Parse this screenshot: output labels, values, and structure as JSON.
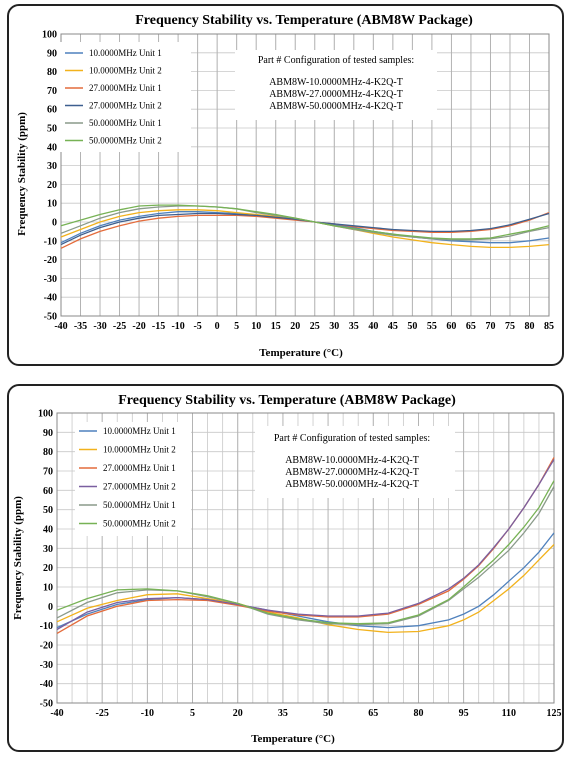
{
  "chart_data": [
    {
      "type": "line",
      "title": "Frequency Stability vs. Temperature (ABM8W Package)",
      "xlabel": "Temperature (°C)",
      "ylabel": "Frequency Stability (ppm)",
      "xlim": [
        -40,
        85
      ],
      "ylim": [
        -50,
        100
      ],
      "xticks": [
        -40,
        -35,
        -30,
        -25,
        -20,
        -15,
        -10,
        -5,
        0,
        5,
        10,
        15,
        20,
        25,
        30,
        35,
        40,
        45,
        50,
        55,
        60,
        65,
        70,
        75,
        80,
        85
      ],
      "yticks": [
        -50,
        -40,
        -30,
        -20,
        -10,
        0,
        10,
        20,
        30,
        40,
        50,
        60,
        70,
        80,
        90,
        100
      ],
      "grid": true,
      "legend": "top-left",
      "note_lines": [
        "Part # Configuration of tested samples:",
        "ABM8W-10.0000MHz-4-K2Q-T",
        "ABM8W-27.0000MHz-4-K2Q-T",
        "ABM8W-50.0000MHz-4-K2Q-T"
      ],
      "x": [
        -40,
        -35,
        -30,
        -25,
        -20,
        -15,
        -10,
        -5,
        0,
        5,
        10,
        15,
        20,
        25,
        30,
        35,
        40,
        45,
        50,
        55,
        60,
        65,
        70,
        75,
        80,
        85
      ],
      "series": [
        {
          "name": "10.0000MHz Unit 1",
          "color": "#4f81bd",
          "values": [
            -11,
            -6,
            -2,
            1,
            3,
            4.5,
            5.5,
            5.5,
            5,
            4.5,
            3.5,
            2.5,
            1.5,
            0,
            -1.5,
            -3,
            -5,
            -6.5,
            -8,
            -9,
            -10,
            -10.5,
            -11,
            -11,
            -10,
            -8.5
          ]
        },
        {
          "name": "10.0000MHz Unit 2",
          "color": "#f2b21c",
          "values": [
            -8,
            -4,
            0,
            3,
            5,
            6,
            6.5,
            6.5,
            6,
            5,
            4,
            3,
            1.5,
            0,
            -2,
            -4,
            -6,
            -8,
            -9.5,
            -11,
            -12,
            -13,
            -13.5,
            -13.5,
            -13,
            -12
          ]
        },
        {
          "name": "27.0000MHz Unit 1",
          "color": "#e46c3c",
          "values": [
            -14,
            -9,
            -5,
            -2,
            0.5,
            2,
            3,
            3.5,
            3.5,
            3.5,
            3,
            2,
            1,
            0,
            -1,
            -2.5,
            -3.5,
            -4.5,
            -5,
            -5.5,
            -5.5,
            -5,
            -4,
            -2,
            1,
            5
          ]
        },
        {
          "name": "27.0000MHz Unit 2",
          "color": "#3d5f8f",
          "values": [
            -12,
            -7,
            -3,
            0,
            2,
            3.5,
            4,
            4.5,
            4.5,
            4,
            3.5,
            2.5,
            1.5,
            0,
            -1,
            -2,
            -3,
            -4,
            -4.5,
            -5,
            -5,
            -4.5,
            -3.5,
            -1.5,
            1.5,
            4.5
          ]
        },
        {
          "name": "50.0000MHz Unit 1",
          "color": "#8a9a8a",
          "values": [
            -6,
            -2,
            2,
            5,
            7,
            8,
            8.5,
            8.5,
            8,
            7,
            5,
            3.5,
            2,
            0,
            -2,
            -4,
            -5.5,
            -7,
            -8,
            -9,
            -9.5,
            -9.5,
            -9,
            -7.5,
            -5,
            -3
          ]
        },
        {
          "name": "50.0000MHz Unit 2",
          "color": "#77b255",
          "values": [
            -2,
            1,
            4,
            6.5,
            8.5,
            9,
            9,
            8.5,
            8,
            7,
            5.5,
            4,
            2,
            0,
            -2,
            -3.5,
            -5,
            -6.5,
            -7.5,
            -8.5,
            -9,
            -9,
            -8.5,
            -6.5,
            -4.5,
            -2
          ]
        }
      ]
    },
    {
      "type": "line",
      "title": "Frequency Stability vs. Temperature (ABM8W Package)",
      "xlabel": "Temperature (°C)",
      "ylabel": "Frequency Stability (ppm)",
      "xlim": [
        -40,
        125
      ],
      "ylim": [
        -50,
        100
      ],
      "xticks": [
        -40,
        -25,
        -10,
        5,
        20,
        35,
        50,
        65,
        80,
        95,
        110,
        125
      ],
      "yticks": [
        -50,
        -40,
        -30,
        -20,
        -10,
        0,
        10,
        20,
        30,
        40,
        50,
        60,
        70,
        80,
        90,
        100
      ],
      "grid": true,
      "legend": "top-left",
      "note_lines": [
        "Part # Configuration of tested samples:",
        "ABM8W-10.0000MHz-4-K2Q-T",
        "ABM8W-27.0000MHz-4-K2Q-T",
        "ABM8W-50.0000MHz-4-K2Q-T"
      ],
      "x": [
        -40,
        -30,
        -20,
        -10,
        0,
        10,
        20,
        30,
        40,
        50,
        60,
        70,
        80,
        90,
        95,
        100,
        105,
        110,
        115,
        120,
        125
      ],
      "series": [
        {
          "name": "10.0000MHz Unit 1",
          "color": "#4f81bd",
          "values": [
            -11,
            -4,
            1,
            3.5,
            4.5,
            3.5,
            1,
            -2,
            -5,
            -8,
            -10,
            -11,
            -10,
            -7,
            -4,
            0,
            6,
            13,
            20,
            28,
            38
          ]
        },
        {
          "name": "10.0000MHz Unit 2",
          "color": "#f2b21c",
          "values": [
            -8,
            -1,
            3,
            6,
            6.5,
            4,
            1.5,
            -3,
            -6,
            -9.5,
            -12,
            -13.5,
            -13,
            -10,
            -7,
            -3,
            3,
            9,
            16,
            24,
            32
          ]
        },
        {
          "name": "27.0000MHz Unit 1",
          "color": "#e46c3c",
          "values": [
            -14,
            -5,
            0,
            3,
            3.5,
            3,
            0.5,
            -2.5,
            -4.5,
            -5.5,
            -5.5,
            -4,
            1,
            8,
            14,
            21,
            30,
            40,
            51,
            63,
            77
          ]
        },
        {
          "name": "27.0000MHz Unit 2",
          "color": "#7a5fa0",
          "values": [
            -12,
            -3,
            2,
            4,
            4.5,
            3.5,
            1,
            -2,
            -4,
            -5,
            -5,
            -3.5,
            1.5,
            9,
            14.5,
            21.5,
            30.5,
            40,
            51,
            63,
            76
          ]
        },
        {
          "name": "50.0000MHz Unit 1",
          "color": "#8a9a8a",
          "values": [
            -6,
            2,
            7,
            8.5,
            8,
            5,
            1.5,
            -4,
            -7,
            -9,
            -9.5,
            -9,
            -5,
            3,
            9,
            15,
            22,
            29,
            38,
            48,
            62
          ]
        },
        {
          "name": "50.0000MHz Unit 2",
          "color": "#77b255",
          "values": [
            -2,
            4,
            8.5,
            9,
            8,
            5.5,
            1.5,
            -3.5,
            -6.5,
            -8.5,
            -9,
            -8.5,
            -4.5,
            3.5,
            10,
            17,
            24,
            32,
            41,
            51,
            65
          ]
        }
      ]
    }
  ]
}
